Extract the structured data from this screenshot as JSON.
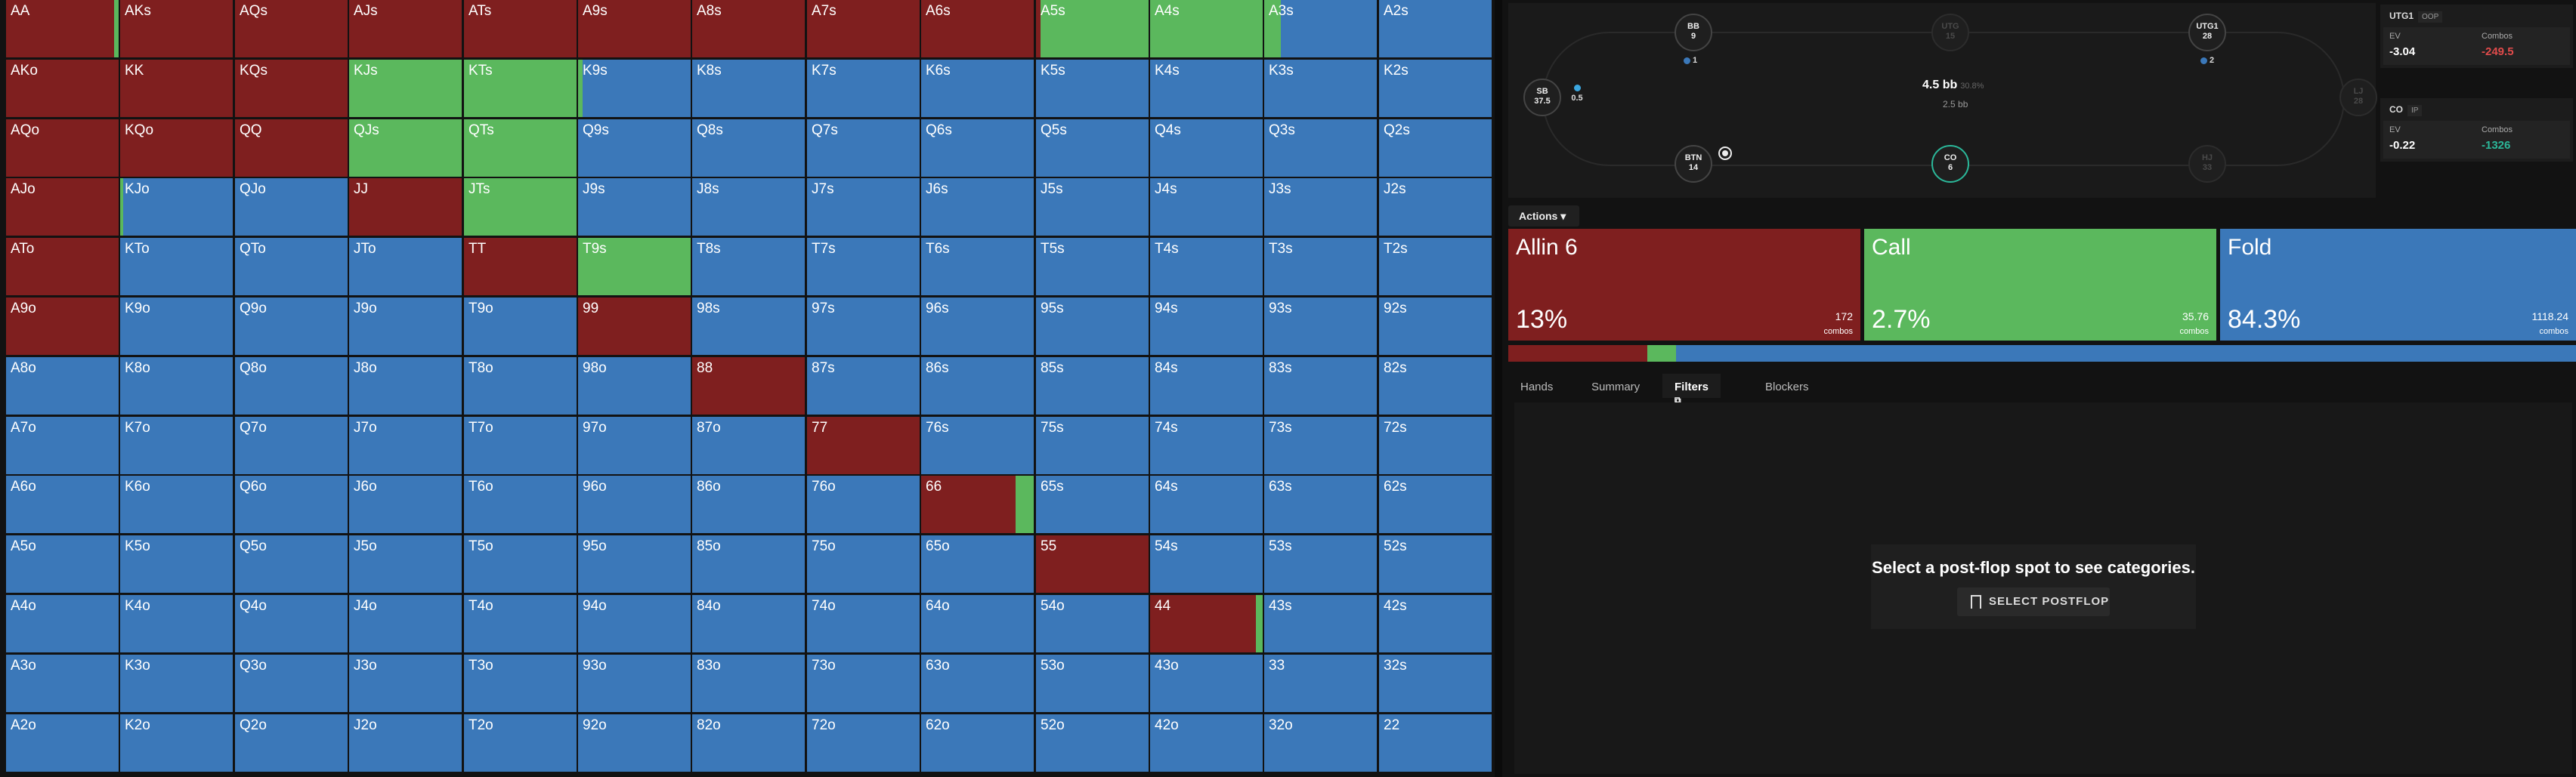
{
  "colors": {
    "allin": "#7f1f1f",
    "call": "#5bb85d",
    "fold": "#3b78b9",
    "positive": "#2bb89a",
    "negative": "#e04b4b"
  },
  "grid": {
    "rows": [
      [
        "AA",
        "AKs",
        "AQs",
        "AJs",
        "ATs",
        "A9s",
        "A8s",
        "A7s",
        "A6s",
        "A5s",
        "A4s",
        "A3s",
        "A2s"
      ],
      [
        "AKo",
        "KK",
        "KQs",
        "KJs",
        "KTs",
        "K9s",
        "K8s",
        "K7s",
        "K6s",
        "K5s",
        "K4s",
        "K3s",
        "K2s"
      ],
      [
        "AQo",
        "KQo",
        "QQ",
        "QJs",
        "QTs",
        "Q9s",
        "Q8s",
        "Q7s",
        "Q6s",
        "Q5s",
        "Q4s",
        "Q3s",
        "Q2s"
      ],
      [
        "AJo",
        "KJo",
        "QJo",
        "JJ",
        "JTs",
        "J9s",
        "J8s",
        "J7s",
        "J6s",
        "J5s",
        "J4s",
        "J3s",
        "J2s"
      ],
      [
        "ATo",
        "KTo",
        "QTo",
        "JTo",
        "TT",
        "T9s",
        "T8s",
        "T7s",
        "T6s",
        "T5s",
        "T4s",
        "T3s",
        "T2s"
      ],
      [
        "A9o",
        "K9o",
        "Q9o",
        "J9o",
        "T9o",
        "99",
        "98s",
        "97s",
        "96s",
        "95s",
        "94s",
        "93s",
        "92s"
      ],
      [
        "A8o",
        "K8o",
        "Q8o",
        "J8o",
        "T8o",
        "98o",
        "88",
        "87s",
        "86s",
        "85s",
        "84s",
        "83s",
        "82s"
      ],
      [
        "A7o",
        "K7o",
        "Q7o",
        "J7o",
        "T7o",
        "97o",
        "87o",
        "77",
        "76s",
        "75s",
        "74s",
        "73s",
        "72s"
      ],
      [
        "A6o",
        "K6o",
        "Q6o",
        "J6o",
        "T6o",
        "96o",
        "86o",
        "76o",
        "66",
        "65s",
        "64s",
        "63s",
        "62s"
      ],
      [
        "A5o",
        "K5o",
        "Q5o",
        "J5o",
        "T5o",
        "95o",
        "85o",
        "75o",
        "65o",
        "55",
        "54s",
        "53s",
        "52s"
      ],
      [
        "A4o",
        "K4o",
        "Q4o",
        "J4o",
        "T4o",
        "94o",
        "84o",
        "74o",
        "64o",
        "54o",
        "44",
        "43s",
        "42s"
      ],
      [
        "A3o",
        "K3o",
        "Q3o",
        "J3o",
        "T3o",
        "93o",
        "83o",
        "73o",
        "63o",
        "53o",
        "43o",
        "33",
        "32s"
      ],
      [
        "A2o",
        "K2o",
        "Q2o",
        "J2o",
        "T2o",
        "92o",
        "82o",
        "72o",
        "62o",
        "52o",
        "42o",
        "32o",
        "22"
      ]
    ],
    "strategy": [
      [
        [
          0.96,
          0.04,
          0
        ],
        [
          1,
          0,
          0
        ],
        [
          1,
          0,
          0
        ],
        [
          1,
          0,
          0
        ],
        [
          1,
          0,
          0
        ],
        [
          1,
          0,
          0
        ],
        [
          1,
          0,
          0
        ],
        [
          1,
          0,
          0
        ],
        [
          1,
          0,
          0
        ],
        [
          0.04,
          0.96,
          0
        ],
        [
          0,
          1,
          0
        ],
        [
          0,
          0.15,
          0.85
        ],
        [
          0,
          0,
          1
        ]
      ],
      [
        [
          1,
          0,
          0
        ],
        [
          1,
          0,
          0
        ],
        [
          1,
          0,
          0
        ],
        [
          0,
          1,
          0
        ],
        [
          0,
          1,
          0
        ],
        [
          0,
          0.04,
          0.96
        ],
        [
          0,
          0,
          1
        ],
        [
          0,
          0,
          1
        ],
        [
          0,
          0,
          1
        ],
        [
          0,
          0,
          1
        ],
        [
          0,
          0,
          1
        ],
        [
          0,
          0,
          1
        ],
        [
          0,
          0,
          1
        ]
      ],
      [
        [
          1,
          0,
          0
        ],
        [
          1,
          0,
          0
        ],
        [
          1,
          0,
          0
        ],
        [
          0,
          1,
          0
        ],
        [
          0,
          1,
          0
        ],
        [
          0,
          0,
          1
        ],
        [
          0,
          0,
          1
        ],
        [
          0,
          0,
          1
        ],
        [
          0,
          0,
          1
        ],
        [
          0,
          0,
          1
        ],
        [
          0,
          0,
          1
        ],
        [
          0,
          0,
          1
        ],
        [
          0,
          0,
          1
        ]
      ],
      [
        [
          1,
          0,
          0
        ],
        [
          0,
          0.03,
          0.97
        ],
        [
          0,
          0,
          1
        ],
        [
          1,
          0,
          0
        ],
        [
          0,
          1,
          0
        ],
        [
          0,
          0,
          1
        ],
        [
          0,
          0,
          1
        ],
        [
          0,
          0,
          1
        ],
        [
          0,
          0,
          1
        ],
        [
          0,
          0,
          1
        ],
        [
          0,
          0,
          1
        ],
        [
          0,
          0,
          1
        ],
        [
          0,
          0,
          1
        ]
      ],
      [
        [
          1,
          0,
          0
        ],
        [
          0,
          0,
          1
        ],
        [
          0,
          0,
          1
        ],
        [
          0,
          0,
          1
        ],
        [
          1,
          0,
          0
        ],
        [
          0,
          1,
          0
        ],
        [
          0,
          0,
          1
        ],
        [
          0,
          0,
          1
        ],
        [
          0,
          0,
          1
        ],
        [
          0,
          0,
          1
        ],
        [
          0,
          0,
          1
        ],
        [
          0,
          0,
          1
        ],
        [
          0,
          0,
          1
        ]
      ],
      [
        [
          1,
          0,
          0
        ],
        [
          0,
          0,
          1
        ],
        [
          0,
          0,
          1
        ],
        [
          0,
          0,
          1
        ],
        [
          0,
          0,
          1
        ],
        [
          1,
          0,
          0
        ],
        [
          0,
          0,
          1
        ],
        [
          0,
          0,
          1
        ],
        [
          0,
          0,
          1
        ],
        [
          0,
          0,
          1
        ],
        [
          0,
          0,
          1
        ],
        [
          0,
          0,
          1
        ],
        [
          0,
          0,
          1
        ]
      ],
      [
        [
          0,
          0,
          1
        ],
        [
          0,
          0,
          1
        ],
        [
          0,
          0,
          1
        ],
        [
          0,
          0,
          1
        ],
        [
          0,
          0,
          1
        ],
        [
          0,
          0,
          1
        ],
        [
          1,
          0,
          0
        ],
        [
          0,
          0,
          1
        ],
        [
          0,
          0,
          1
        ],
        [
          0,
          0,
          1
        ],
        [
          0,
          0,
          1
        ],
        [
          0,
          0,
          1
        ],
        [
          0,
          0,
          1
        ]
      ],
      [
        [
          0,
          0,
          1
        ],
        [
          0,
          0,
          1
        ],
        [
          0,
          0,
          1
        ],
        [
          0,
          0,
          1
        ],
        [
          0,
          0,
          1
        ],
        [
          0,
          0,
          1
        ],
        [
          0,
          0,
          1
        ],
        [
          1,
          0,
          0
        ],
        [
          0,
          0,
          1
        ],
        [
          0,
          0,
          1
        ],
        [
          0,
          0,
          1
        ],
        [
          0,
          0,
          1
        ],
        [
          0,
          0,
          1
        ]
      ],
      [
        [
          0,
          0,
          1
        ],
        [
          0,
          0,
          1
        ],
        [
          0,
          0,
          1
        ],
        [
          0,
          0,
          1
        ],
        [
          0,
          0,
          1
        ],
        [
          0,
          0,
          1
        ],
        [
          0,
          0,
          1
        ],
        [
          0,
          0,
          1
        ],
        [
          0.84,
          0.16,
          0
        ],
        [
          0,
          0,
          1
        ],
        [
          0,
          0,
          1
        ],
        [
          0,
          0,
          1
        ],
        [
          0,
          0,
          1
        ]
      ],
      [
        [
          0,
          0,
          1
        ],
        [
          0,
          0,
          1
        ],
        [
          0,
          0,
          1
        ],
        [
          0,
          0,
          1
        ],
        [
          0,
          0,
          1
        ],
        [
          0,
          0,
          1
        ],
        [
          0,
          0,
          1
        ],
        [
          0,
          0,
          1
        ],
        [
          0,
          0,
          1
        ],
        [
          1,
          0,
          0
        ],
        [
          0,
          0,
          1
        ],
        [
          0,
          0,
          1
        ],
        [
          0,
          0,
          1
        ]
      ],
      [
        [
          0,
          0,
          1
        ],
        [
          0,
          0,
          1
        ],
        [
          0,
          0,
          1
        ],
        [
          0,
          0,
          1
        ],
        [
          0,
          0,
          1
        ],
        [
          0,
          0,
          1
        ],
        [
          0,
          0,
          1
        ],
        [
          0,
          0,
          1
        ],
        [
          0,
          0,
          1
        ],
        [
          0,
          0,
          1
        ],
        [
          0.94,
          0.06,
          0
        ],
        [
          0,
          0,
          1
        ],
        [
          0,
          0,
          1
        ]
      ],
      [
        [
          0,
          0,
          1
        ],
        [
          0,
          0,
          1
        ],
        [
          0,
          0,
          1
        ],
        [
          0,
          0,
          1
        ],
        [
          0,
          0,
          1
        ],
        [
          0,
          0,
          1
        ],
        [
          0,
          0,
          1
        ],
        [
          0,
          0,
          1
        ],
        [
          0,
          0,
          1
        ],
        [
          0,
          0,
          1
        ],
        [
          0,
          0,
          1
        ],
        [
          0,
          0,
          1
        ],
        [
          0,
          0,
          1
        ]
      ],
      [
        [
          0,
          0,
          1
        ],
        [
          0,
          0,
          1
        ],
        [
          0,
          0,
          1
        ],
        [
          0,
          0,
          1
        ],
        [
          0,
          0,
          1
        ],
        [
          0,
          0,
          1
        ],
        [
          0,
          0,
          1
        ],
        [
          0,
          0,
          1
        ],
        [
          0,
          0,
          1
        ],
        [
          0,
          0,
          1
        ],
        [
          0,
          0,
          1
        ],
        [
          0,
          0,
          1
        ],
        [
          0,
          0,
          1
        ]
      ]
    ]
  },
  "table": {
    "seats": {
      "bb": {
        "name": "BB",
        "stack": "9"
      },
      "utg": {
        "name": "UTG",
        "stack": "15"
      },
      "utg1": {
        "name": "UTG1",
        "stack": "28"
      },
      "lj": {
        "name": "LJ",
        "stack": "28"
      },
      "hj": {
        "name": "HJ",
        "stack": "33"
      },
      "co": {
        "name": "CO",
        "stack": "6"
      },
      "btn": {
        "name": "BTN",
        "stack": "14"
      },
      "sb": {
        "name": "SB",
        "stack": "37.5"
      }
    },
    "markers": {
      "bb": "1",
      "utg1": "2",
      "sb": "0.5"
    },
    "pot": {
      "amount": "4.5 bb",
      "pct": "30.8%",
      "bet": "2.5 bb"
    }
  },
  "players": [
    {
      "name": "UTG1",
      "tag": "OOP",
      "ev_label": "EV",
      "ev": "-3.04",
      "combos_label": "Combos",
      "combos": "-249.5"
    },
    {
      "name": "CO",
      "tag": "IP",
      "ev_label": "EV",
      "ev": "-0.22",
      "combos_label": "Combos",
      "combos": "-1326"
    }
  ],
  "actions_label": "Actions",
  "actions": [
    {
      "name": "Allin 6",
      "pct": "13%",
      "combos": "172",
      "unit": "combos",
      "freq": 0.13
    },
    {
      "name": "Call",
      "pct": "2.7%",
      "combos": "35.76",
      "unit": "combos",
      "freq": 0.027
    },
    {
      "name": "Fold",
      "pct": "84.3%",
      "combos": "1118.24",
      "unit": "combos",
      "freq": 0.843
    }
  ],
  "tabs": [
    "Hands",
    "Summary",
    "Filters",
    "Blockers"
  ],
  "filters": {
    "message": "Select a post-flop spot to see categories.",
    "button_label": "SELECT POSTFLOP"
  }
}
